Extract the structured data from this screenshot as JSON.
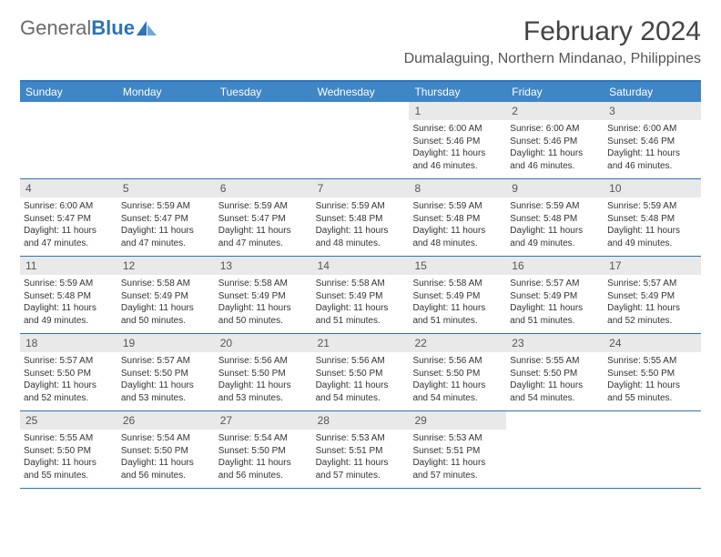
{
  "brand": {
    "text_a": "General",
    "text_b": "Blue"
  },
  "title": "February 2024",
  "location": "Dumalaguing, Northern Mindanao, Philippines",
  "colors": {
    "header_blue": "#3f86c6",
    "border_blue": "#2e74b5",
    "band_gray": "#e9e9e9",
    "text_gray": "#555555",
    "body_text": "#333333",
    "page_bg": "#ffffff"
  },
  "typography": {
    "title_fontsize": 30,
    "location_fontsize": 16,
    "dayhead_fontsize": 12,
    "daynum_fontsize": 12,
    "body_fontsize": 10
  },
  "day_headers": [
    "Sunday",
    "Monday",
    "Tuesday",
    "Wednesday",
    "Thursday",
    "Friday",
    "Saturday"
  ],
  "weeks": [
    [
      {
        "empty": true
      },
      {
        "empty": true
      },
      {
        "empty": true
      },
      {
        "empty": true
      },
      {
        "n": "1",
        "sr": "Sunrise: 6:00 AM",
        "ss": "Sunset: 5:46 PM",
        "d1": "Daylight: 11 hours",
        "d2": "and 46 minutes."
      },
      {
        "n": "2",
        "sr": "Sunrise: 6:00 AM",
        "ss": "Sunset: 5:46 PM",
        "d1": "Daylight: 11 hours",
        "d2": "and 46 minutes."
      },
      {
        "n": "3",
        "sr": "Sunrise: 6:00 AM",
        "ss": "Sunset: 5:46 PM",
        "d1": "Daylight: 11 hours",
        "d2": "and 46 minutes."
      }
    ],
    [
      {
        "n": "4",
        "sr": "Sunrise: 6:00 AM",
        "ss": "Sunset: 5:47 PM",
        "d1": "Daylight: 11 hours",
        "d2": "and 47 minutes."
      },
      {
        "n": "5",
        "sr": "Sunrise: 5:59 AM",
        "ss": "Sunset: 5:47 PM",
        "d1": "Daylight: 11 hours",
        "d2": "and 47 minutes."
      },
      {
        "n": "6",
        "sr": "Sunrise: 5:59 AM",
        "ss": "Sunset: 5:47 PM",
        "d1": "Daylight: 11 hours",
        "d2": "and 47 minutes."
      },
      {
        "n": "7",
        "sr": "Sunrise: 5:59 AM",
        "ss": "Sunset: 5:48 PM",
        "d1": "Daylight: 11 hours",
        "d2": "and 48 minutes."
      },
      {
        "n": "8",
        "sr": "Sunrise: 5:59 AM",
        "ss": "Sunset: 5:48 PM",
        "d1": "Daylight: 11 hours",
        "d2": "and 48 minutes."
      },
      {
        "n": "9",
        "sr": "Sunrise: 5:59 AM",
        "ss": "Sunset: 5:48 PM",
        "d1": "Daylight: 11 hours",
        "d2": "and 49 minutes."
      },
      {
        "n": "10",
        "sr": "Sunrise: 5:59 AM",
        "ss": "Sunset: 5:48 PM",
        "d1": "Daylight: 11 hours",
        "d2": "and 49 minutes."
      }
    ],
    [
      {
        "n": "11",
        "sr": "Sunrise: 5:59 AM",
        "ss": "Sunset: 5:48 PM",
        "d1": "Daylight: 11 hours",
        "d2": "and 49 minutes."
      },
      {
        "n": "12",
        "sr": "Sunrise: 5:58 AM",
        "ss": "Sunset: 5:49 PM",
        "d1": "Daylight: 11 hours",
        "d2": "and 50 minutes."
      },
      {
        "n": "13",
        "sr": "Sunrise: 5:58 AM",
        "ss": "Sunset: 5:49 PM",
        "d1": "Daylight: 11 hours",
        "d2": "and 50 minutes."
      },
      {
        "n": "14",
        "sr": "Sunrise: 5:58 AM",
        "ss": "Sunset: 5:49 PM",
        "d1": "Daylight: 11 hours",
        "d2": "and 51 minutes."
      },
      {
        "n": "15",
        "sr": "Sunrise: 5:58 AM",
        "ss": "Sunset: 5:49 PM",
        "d1": "Daylight: 11 hours",
        "d2": "and 51 minutes."
      },
      {
        "n": "16",
        "sr": "Sunrise: 5:57 AM",
        "ss": "Sunset: 5:49 PM",
        "d1": "Daylight: 11 hours",
        "d2": "and 51 minutes."
      },
      {
        "n": "17",
        "sr": "Sunrise: 5:57 AM",
        "ss": "Sunset: 5:49 PM",
        "d1": "Daylight: 11 hours",
        "d2": "and 52 minutes."
      }
    ],
    [
      {
        "n": "18",
        "sr": "Sunrise: 5:57 AM",
        "ss": "Sunset: 5:50 PM",
        "d1": "Daylight: 11 hours",
        "d2": "and 52 minutes."
      },
      {
        "n": "19",
        "sr": "Sunrise: 5:57 AM",
        "ss": "Sunset: 5:50 PM",
        "d1": "Daylight: 11 hours",
        "d2": "and 53 minutes."
      },
      {
        "n": "20",
        "sr": "Sunrise: 5:56 AM",
        "ss": "Sunset: 5:50 PM",
        "d1": "Daylight: 11 hours",
        "d2": "and 53 minutes."
      },
      {
        "n": "21",
        "sr": "Sunrise: 5:56 AM",
        "ss": "Sunset: 5:50 PM",
        "d1": "Daylight: 11 hours",
        "d2": "and 54 minutes."
      },
      {
        "n": "22",
        "sr": "Sunrise: 5:56 AM",
        "ss": "Sunset: 5:50 PM",
        "d1": "Daylight: 11 hours",
        "d2": "and 54 minutes."
      },
      {
        "n": "23",
        "sr": "Sunrise: 5:55 AM",
        "ss": "Sunset: 5:50 PM",
        "d1": "Daylight: 11 hours",
        "d2": "and 54 minutes."
      },
      {
        "n": "24",
        "sr": "Sunrise: 5:55 AM",
        "ss": "Sunset: 5:50 PM",
        "d1": "Daylight: 11 hours",
        "d2": "and 55 minutes."
      }
    ],
    [
      {
        "n": "25",
        "sr": "Sunrise: 5:55 AM",
        "ss": "Sunset: 5:50 PM",
        "d1": "Daylight: 11 hours",
        "d2": "and 55 minutes."
      },
      {
        "n": "26",
        "sr": "Sunrise: 5:54 AM",
        "ss": "Sunset: 5:50 PM",
        "d1": "Daylight: 11 hours",
        "d2": "and 56 minutes."
      },
      {
        "n": "27",
        "sr": "Sunrise: 5:54 AM",
        "ss": "Sunset: 5:50 PM",
        "d1": "Daylight: 11 hours",
        "d2": "and 56 minutes."
      },
      {
        "n": "28",
        "sr": "Sunrise: 5:53 AM",
        "ss": "Sunset: 5:51 PM",
        "d1": "Daylight: 11 hours",
        "d2": "and 57 minutes."
      },
      {
        "n": "29",
        "sr": "Sunrise: 5:53 AM",
        "ss": "Sunset: 5:51 PM",
        "d1": "Daylight: 11 hours",
        "d2": "and 57 minutes."
      },
      {
        "empty": true
      },
      {
        "empty": true
      }
    ]
  ]
}
